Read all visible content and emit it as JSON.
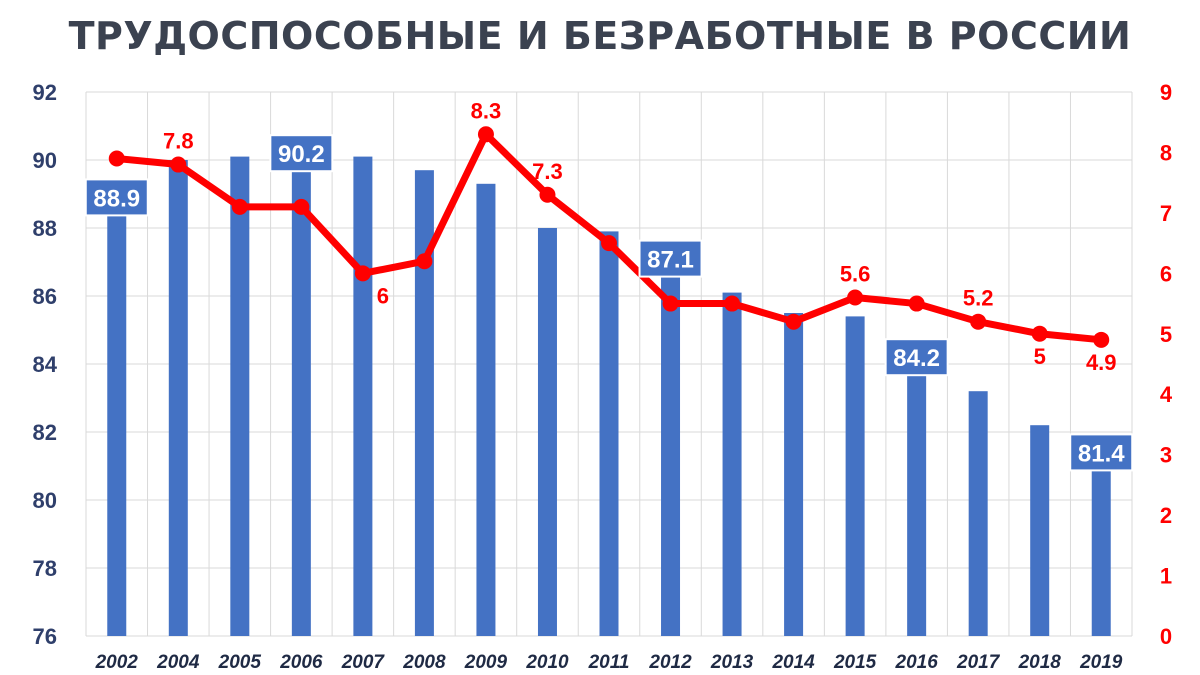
{
  "chart_data": {
    "type": "bar",
    "title": "ТРУДОСПОСОБНЫЕ И БЕЗРАБОТНЫЕ В РОССИИ",
    "categories": [
      "2002",
      "2004",
      "2005",
      "2006",
      "2007",
      "2008",
      "2009",
      "2010",
      "2011",
      "2012",
      "2013",
      "2014",
      "2015",
      "2016",
      "2017",
      "2018",
      "2019"
    ],
    "series": [
      {
        "type": "bar",
        "axis": "left",
        "color": "#4472c4",
        "values": [
          88.9,
          90.0,
          90.1,
          90.2,
          90.1,
          89.7,
          89.3,
          88.0,
          87.9,
          87.1,
          86.1,
          85.5,
          85.4,
          84.2,
          83.2,
          82.2,
          81.4
        ],
        "labels": [
          "88.9",
          "",
          "",
          "90.2",
          "",
          "",
          "",
          "",
          "",
          "87.1",
          "",
          "",
          "",
          "84.2",
          "",
          "",
          "81.4"
        ]
      },
      {
        "type": "line",
        "axis": "right",
        "color": "#ff0000",
        "values": [
          7.9,
          7.8,
          7.1,
          7.1,
          6.0,
          6.2,
          8.3,
          7.3,
          6.5,
          5.5,
          5.5,
          5.2,
          5.6,
          5.5,
          5.2,
          5.0,
          4.9
        ],
        "labels": [
          "",
          "7.8",
          "",
          "",
          "6",
          "",
          "8.3",
          "7.3",
          "",
          "",
          "",
          "",
          "5.6",
          "",
          "5.2",
          "5",
          "4.9"
        ]
      }
    ],
    "y_left": {
      "ylim": [
        76,
        92
      ],
      "ticks": [
        "76",
        "78",
        "80",
        "82",
        "84",
        "86",
        "88",
        "90",
        "92"
      ],
      "color": "#2f3f6b"
    },
    "y_right": {
      "ylim": [
        0,
        9
      ],
      "ticks": [
        "0",
        "1",
        "2",
        "3",
        "4",
        "5",
        "6",
        "7",
        "8",
        "9"
      ],
      "color": "#ff0000"
    },
    "grid": true,
    "legend": "none"
  }
}
